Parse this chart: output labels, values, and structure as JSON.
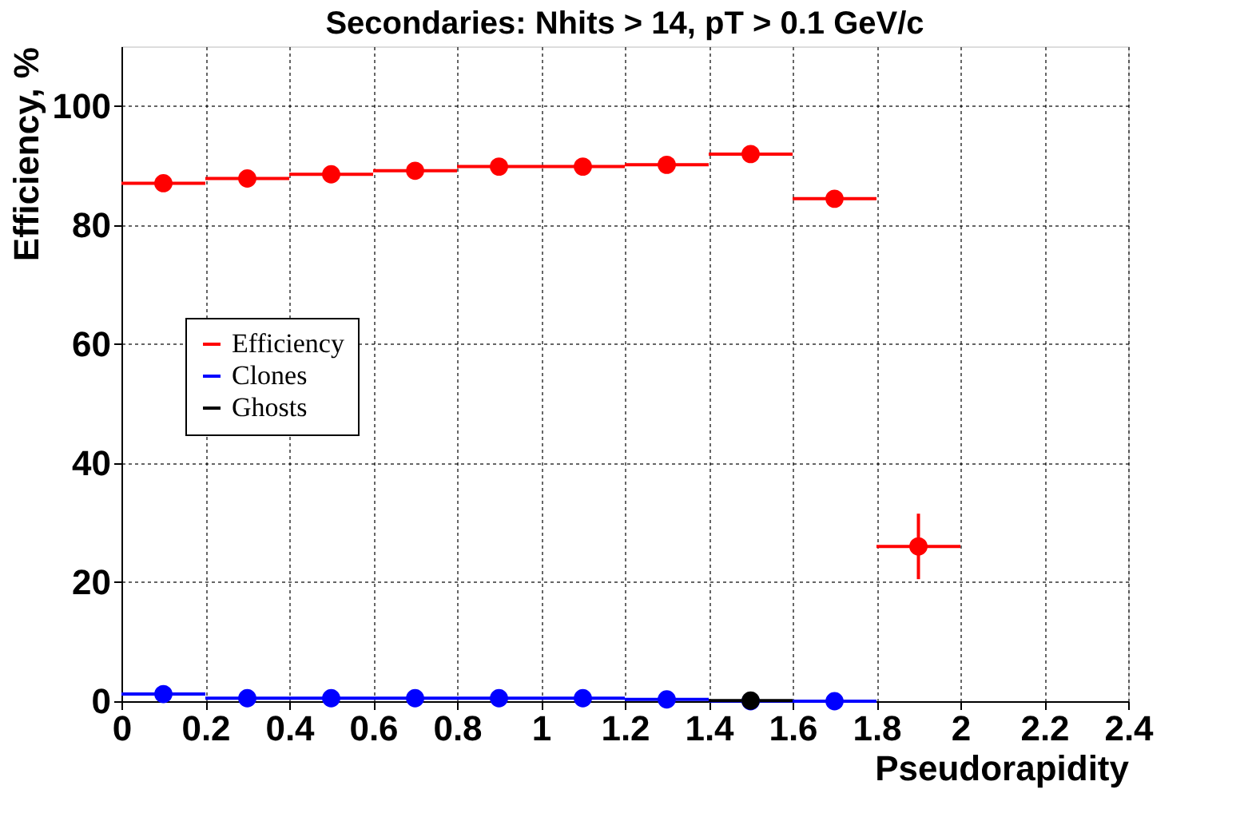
{
  "chart_data": {
    "type": "scatter",
    "title": "Secondaries: Nhits > 14, pT > 0.1 GeV/c",
    "xlabel": "Pseudorapidity",
    "ylabel": "Efficiency, %",
    "xlim": [
      0,
      2.4
    ],
    "xticks": [
      0,
      0.2,
      0.4,
      0.6,
      0.8,
      1,
      1.2,
      1.4,
      1.6,
      1.8,
      2,
      2.2,
      2.4
    ],
    "ylim": [
      0,
      110
    ],
    "yticks": [
      0,
      20,
      40,
      60,
      80,
      100
    ],
    "grid": true,
    "legend": "left",
    "marker": "circle",
    "series": [
      {
        "name": "Efficiency",
        "color": "#ff0000",
        "x": [
          0.1,
          0.3,
          0.5,
          0.7,
          0.9,
          1.1,
          1.3,
          1.5,
          1.7,
          1.9
        ],
        "values": [
          87.0,
          87.8,
          88.5,
          89.1,
          89.8,
          89.8,
          90.1,
          91.9,
          84.4,
          26.0
        ],
        "xerrors": [
          0.1,
          0.1,
          0.1,
          0.1,
          0.1,
          0.1,
          0.1,
          0.1,
          0.1,
          0.1
        ],
        "errors": [
          null,
          null,
          null,
          null,
          null,
          null,
          null,
          null,
          null,
          5.5
        ]
      },
      {
        "name": "Clones",
        "color": "#0000ff",
        "x": [
          0.1,
          0.3,
          0.5,
          0.7,
          0.9,
          1.1,
          1.3,
          1.5,
          1.7
        ],
        "values": [
          1.2,
          0.5,
          0.5,
          0.5,
          0.5,
          0.5,
          0.3,
          0.0,
          0.0
        ],
        "xerrors": [
          0.1,
          0.1,
          0.1,
          0.1,
          0.1,
          0.1,
          0.1,
          0.1,
          0.1
        ]
      },
      {
        "name": "Ghosts",
        "color": "#000000",
        "x": [
          1.5
        ],
        "values": [
          0.1
        ],
        "xerrors": [
          0.1
        ]
      }
    ]
  }
}
